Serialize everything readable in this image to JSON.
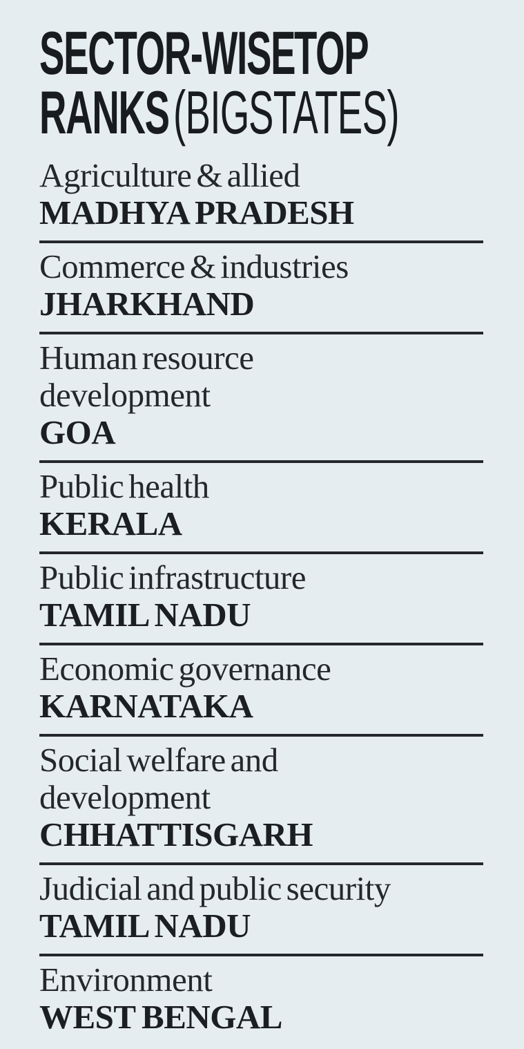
{
  "page": {
    "background_color": "#e6edf1",
    "text_color": "#24282b",
    "divider_color": "#24282b"
  },
  "title": {
    "line1": "SECTOR-WISE TOP",
    "line2_bold": "RANKS",
    "line2_light": "(BIG STATES)"
  },
  "rows": [
    {
      "sector": "Agriculture & allied",
      "state": "MADHYA PRADESH"
    },
    {
      "sector": "Commerce & industries",
      "state": "JHARKHAND"
    },
    {
      "sector": "Human resource\ndevelopment",
      "state": "GOA"
    },
    {
      "sector": "Public health",
      "state": "KERALA"
    },
    {
      "sector": "Public infrastructure",
      "state": "TAMIL NADU"
    },
    {
      "sector": "Economic governance",
      "state": "KARNATAKA"
    },
    {
      "sector": "Social welfare and\ndevelopment",
      "state": "CHHATTISGARH"
    },
    {
      "sector": "Judicial and public security",
      "state": "TAMIL NADU"
    },
    {
      "sector": "Environment",
      "state": "WEST BENGAL"
    }
  ]
}
